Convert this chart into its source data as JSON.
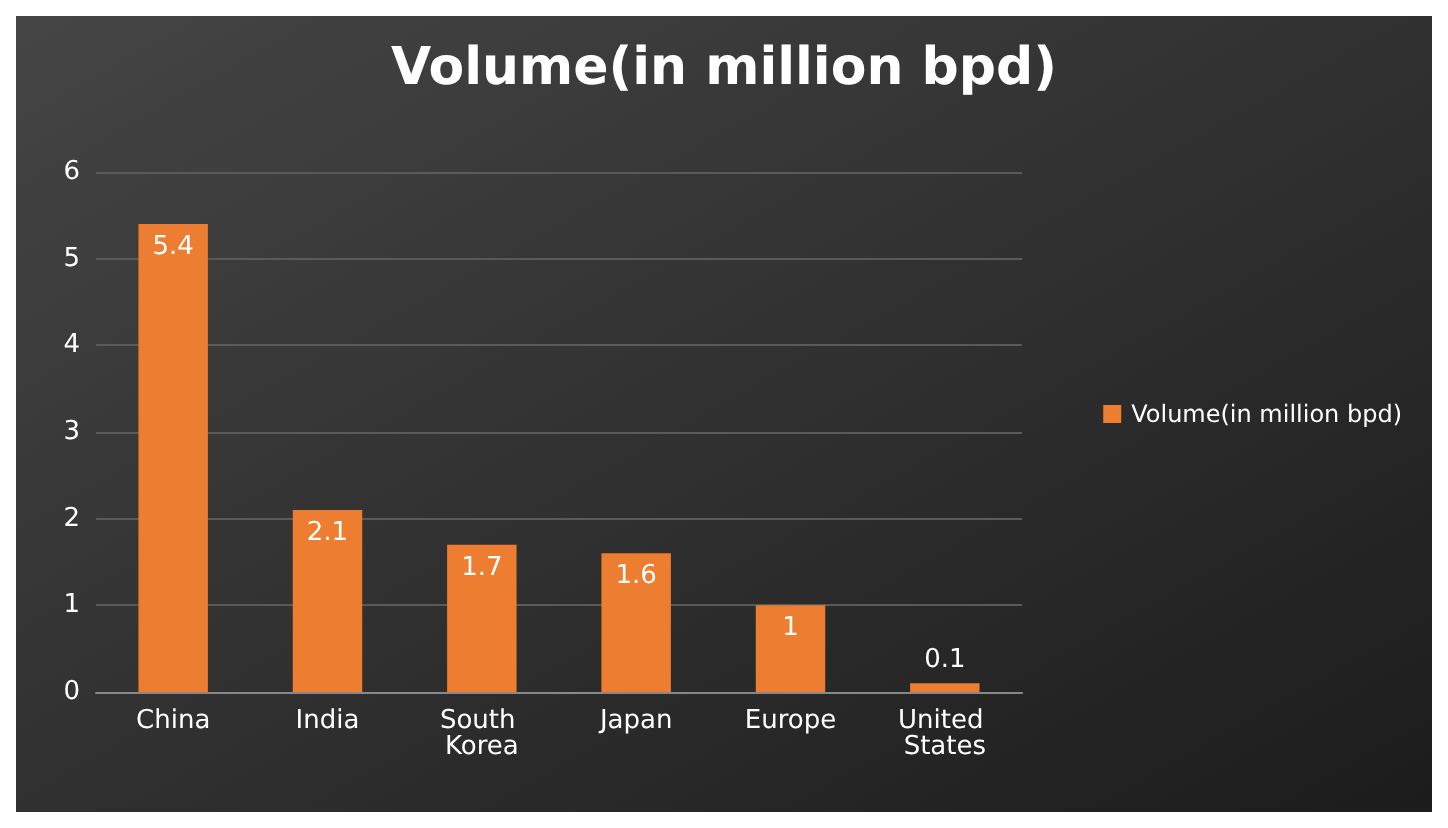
{
  "chart_data": {
    "type": "bar",
    "title": "Volume(in million bpd)",
    "categories": [
      "China",
      "India",
      "South Korea",
      "Japan",
      "Europe",
      "United States"
    ],
    "series": [
      {
        "name": "Volume(in million bpd)",
        "color": "#ed7d31",
        "values": [
          5.4,
          2.1,
          1.7,
          1.6,
          1,
          0.1
        ]
      }
    ],
    "ylim": [
      0,
      6
    ],
    "yticks": [
      0,
      1,
      2,
      3,
      4,
      5,
      6
    ],
    "grid": "y",
    "legend": "right",
    "data_labels": true
  }
}
